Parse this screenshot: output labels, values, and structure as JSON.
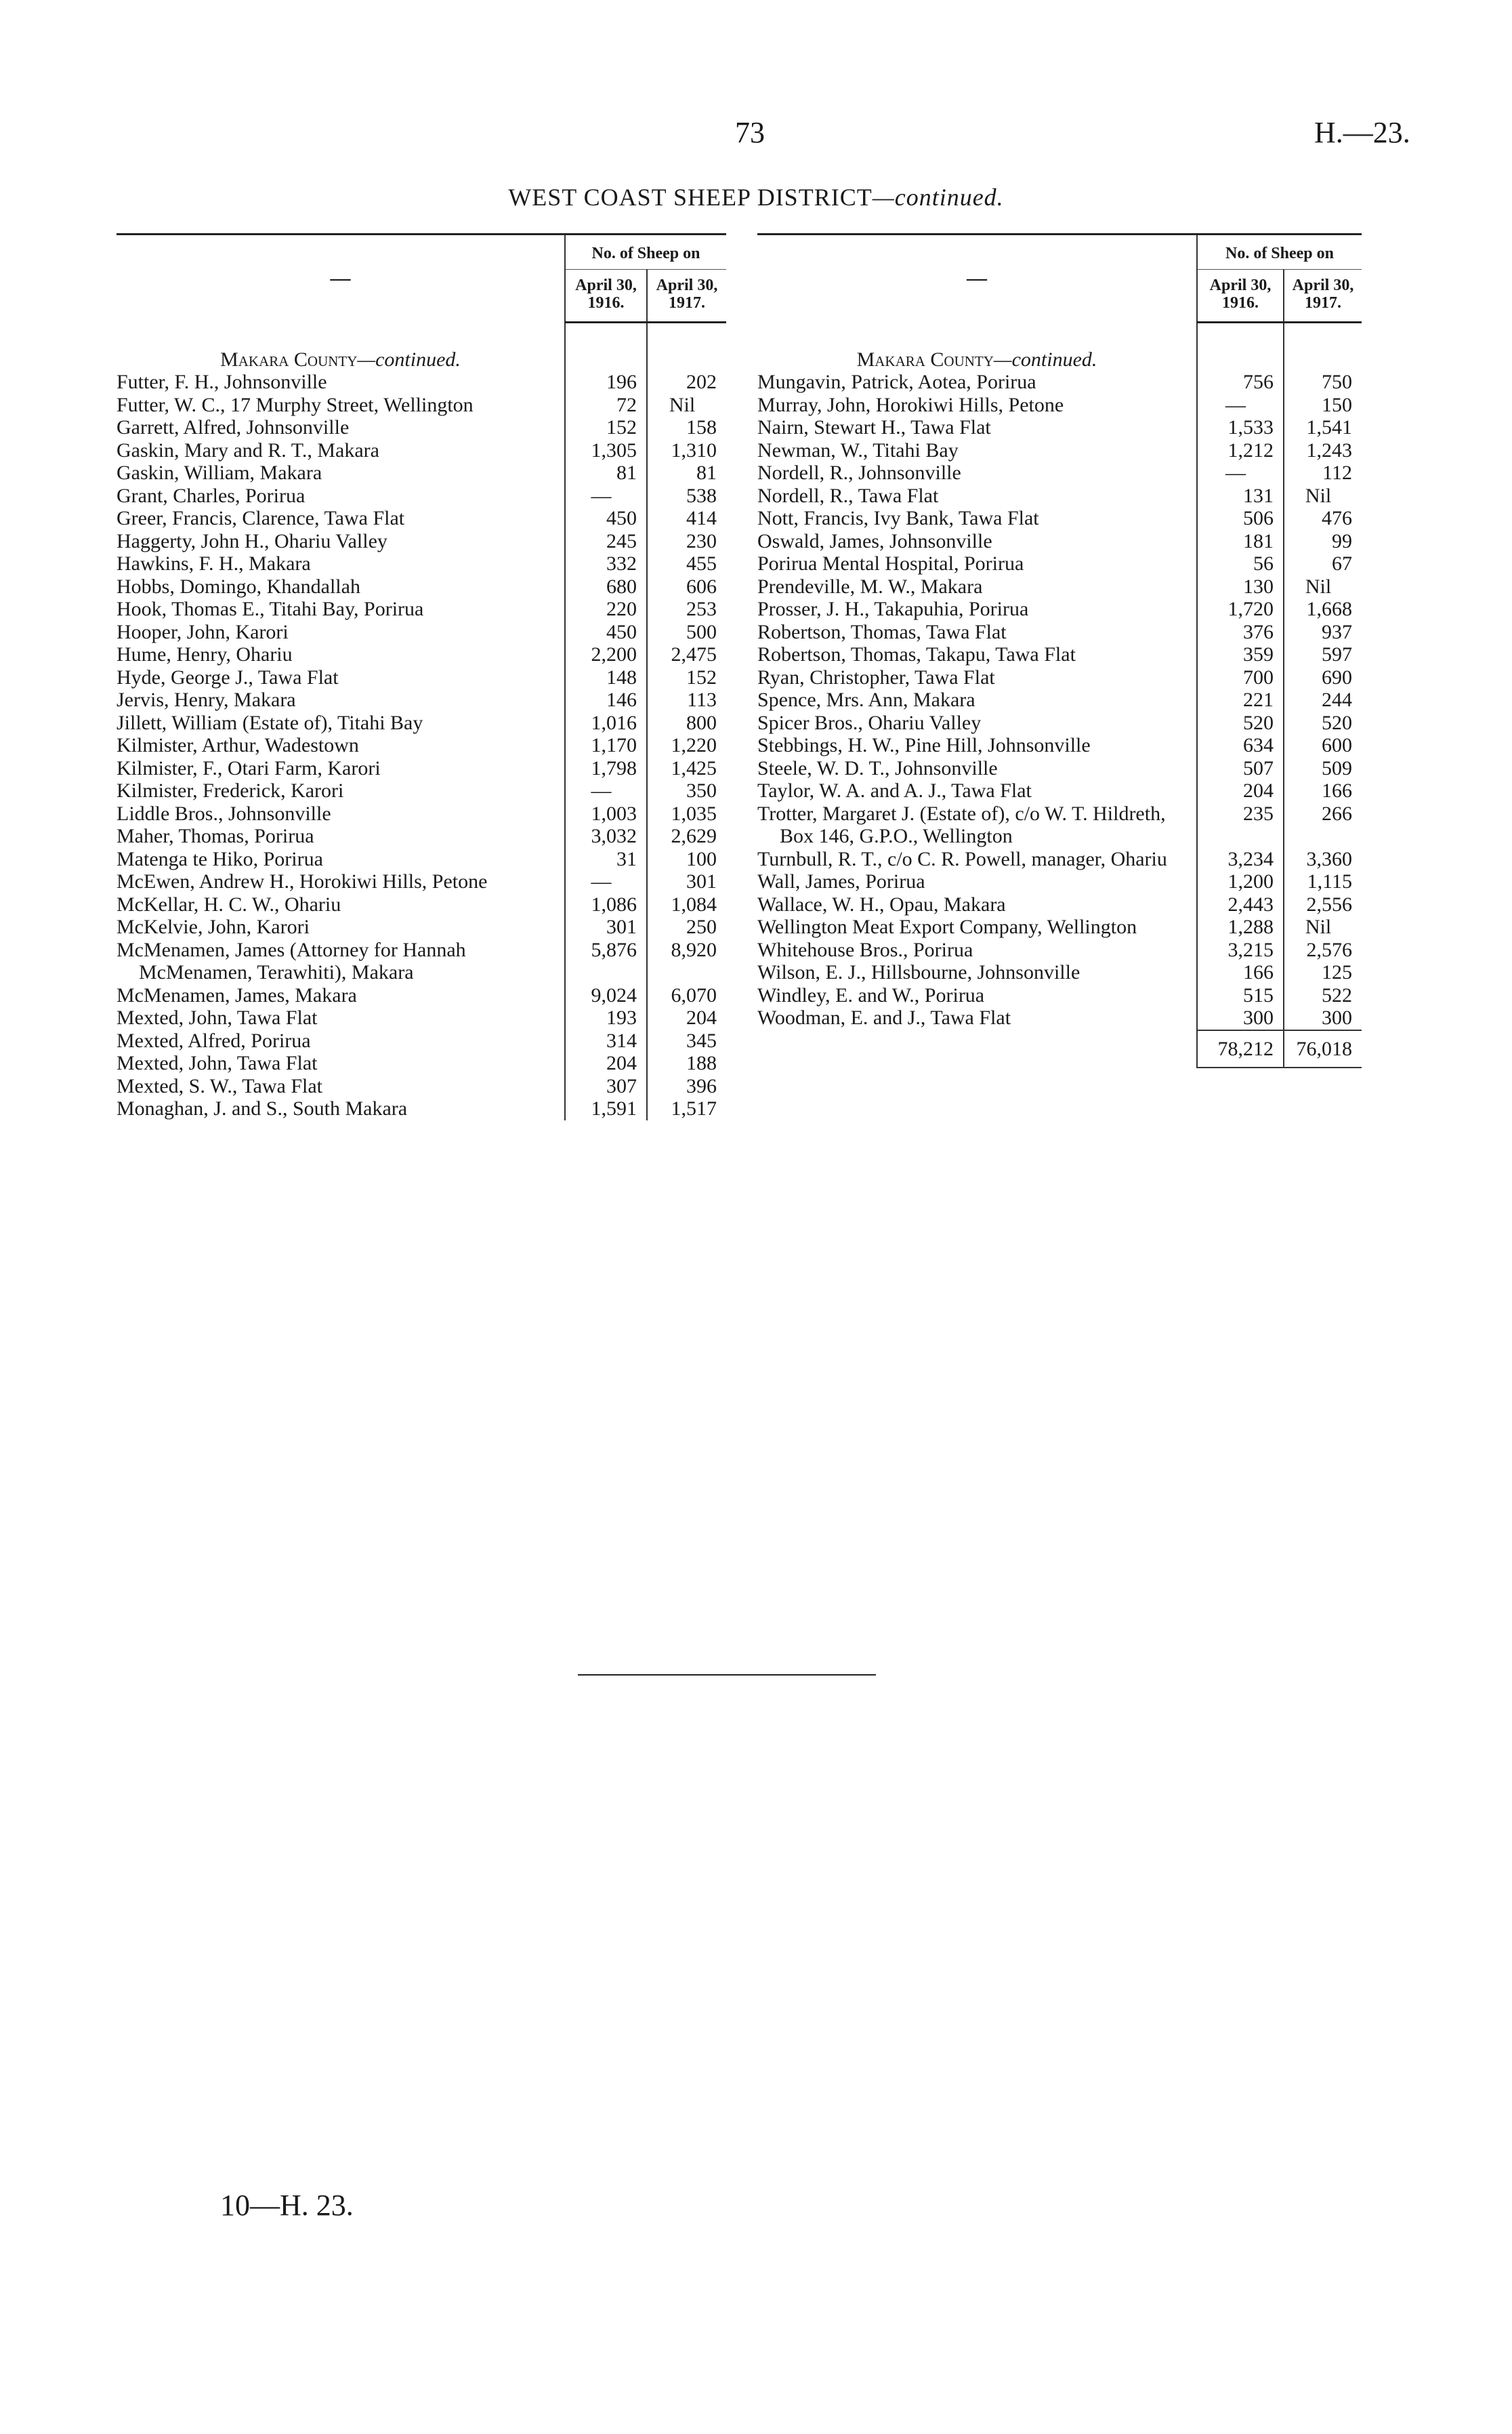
{
  "header": {
    "page_number": "73",
    "doc_ref": "H.—23.",
    "title": "WEST COAST SHEEP DISTRICT",
    "title_suffix": "—continued."
  },
  "columns": {
    "name": "—",
    "group": "No. of Sheep on",
    "col1": "April 30, 1916.",
    "col2": "April 30, 1917."
  },
  "left_table": {
    "section": {
      "name": "Makara County",
      "suffix": "—continued."
    },
    "rows": [
      {
        "name": "Futter, F. H., Johnsonville",
        "v1916": "196",
        "v1917": "202"
      },
      {
        "name": "Futter, W. C., 17 Murphy Street, Wellington",
        "v1916": "72",
        "v1917": "Nil"
      },
      {
        "name": "Garrett, Alfred, Johnsonville",
        "v1916": "152",
        "v1917": "158"
      },
      {
        "name": "Gaskin, Mary and R. T., Makara",
        "v1916": "1,305",
        "v1917": "1,310"
      },
      {
        "name": "Gaskin, William, Makara",
        "v1916": "81",
        "v1917": "81"
      },
      {
        "name": "Grant, Charles, Porirua",
        "v1916": "—",
        "v1917": "538"
      },
      {
        "name": "Greer, Francis, Clarence, Tawa Flat",
        "v1916": "450",
        "v1917": "414"
      },
      {
        "name": "Haggerty, John H., Ohariu Valley",
        "v1916": "245",
        "v1917": "230"
      },
      {
        "name": "Hawkins, F. H., Makara",
        "v1916": "332",
        "v1917": "455"
      },
      {
        "name": "Hobbs, Domingo, Khandallah",
        "v1916": "680",
        "v1917": "606"
      },
      {
        "name": "Hook, Thomas E., Titahi Bay, Porirua",
        "v1916": "220",
        "v1917": "253"
      },
      {
        "name": "Hooper, John, Karori",
        "v1916": "450",
        "v1917": "500"
      },
      {
        "name": "Hume, Henry, Ohariu",
        "v1916": "2,200",
        "v1917": "2,475"
      },
      {
        "name": "Hyde, George J., Tawa Flat",
        "v1916": "148",
        "v1917": "152"
      },
      {
        "name": "Jervis, Henry, Makara",
        "v1916": "146",
        "v1917": "113"
      },
      {
        "name": "Jillett, William (Estate of), Titahi Bay",
        "v1916": "1,016",
        "v1917": "800"
      },
      {
        "name": "Kilmister, Arthur, Wadestown",
        "v1916": "1,170",
        "v1917": "1,220"
      },
      {
        "name": "Kilmister, F., Otari Farm, Karori",
        "v1916": "1,798",
        "v1917": "1,425"
      },
      {
        "name": "Kilmister, Frederick, Karori",
        "v1916": "—",
        "v1917": "350"
      },
      {
        "name": "Liddle Bros., Johnsonville",
        "v1916": "1,003",
        "v1917": "1,035"
      },
      {
        "name": "Maher, Thomas, Porirua",
        "v1916": "3,032",
        "v1917": "2,629"
      },
      {
        "name": "Matenga te Hiko, Porirua",
        "v1916": "31",
        "v1917": "100"
      },
      {
        "name": "McEwen, Andrew H., Horokiwi Hills, Petone",
        "v1916": "—",
        "v1917": "301"
      },
      {
        "name": "McKellar, H. C. W., Ohariu",
        "v1916": "1,086",
        "v1917": "1,084"
      },
      {
        "name": "McKelvie, John, Karori",
        "v1916": "301",
        "v1917": "250"
      },
      {
        "name": "McMenamen, James (Attorney for Hannah McMenamen, Terawhiti), Makara",
        "v1916": "5,876",
        "v1917": "8,920"
      },
      {
        "name": "McMenamen, James, Makara",
        "v1916": "9,024",
        "v1917": "6,070"
      },
      {
        "name": "Mexted, John, Tawa Flat",
        "v1916": "193",
        "v1917": "204"
      },
      {
        "name": "Mexted, Alfred, Porirua",
        "v1916": "314",
        "v1917": "345"
      },
      {
        "name": "Mexted, John, Tawa Flat",
        "v1916": "204",
        "v1917": "188"
      },
      {
        "name": "Mexted, S. W., Tawa Flat",
        "v1916": "307",
        "v1917": "396"
      },
      {
        "name": "Monaghan, J. and S., South Makara",
        "v1916": "1,591",
        "v1917": "1,517"
      }
    ]
  },
  "right_table": {
    "section": {
      "name": "Makara County",
      "suffix": "—continued."
    },
    "rows": [
      {
        "name": "Mungavin, Patrick, Aotea, Porirua",
        "v1916": "756",
        "v1917": "750"
      },
      {
        "name": "Murray, John, Horokiwi Hills, Petone",
        "v1916": "—",
        "v1917": "150"
      },
      {
        "name": "Nairn, Stewart H., Tawa Flat",
        "v1916": "1,533",
        "v1917": "1,541"
      },
      {
        "name": "Newman, W., Titahi Bay",
        "v1916": "1,212",
        "v1917": "1,243"
      },
      {
        "name": "Nordell, R., Johnsonville",
        "v1916": "—",
        "v1917": "112"
      },
      {
        "name": "Nordell, R., Tawa Flat",
        "v1916": "131",
        "v1917": "Nil"
      },
      {
        "name": "Nott, Francis, Ivy Bank, Tawa Flat",
        "v1916": "506",
        "v1917": "476"
      },
      {
        "name": "Oswald, James, Johnsonville",
        "v1916": "181",
        "v1917": "99"
      },
      {
        "name": "Porirua Mental Hospital, Porirua",
        "v1916": "56",
        "v1917": "67"
      },
      {
        "name": "Prendeville, M. W., Makara",
        "v1916": "130",
        "v1917": "Nil"
      },
      {
        "name": "Prosser, J. H., Takapuhia, Porirua",
        "v1916": "1,720",
        "v1917": "1,668"
      },
      {
        "name": "Robertson, Thomas, Tawa Flat",
        "v1916": "376",
        "v1917": "937"
      },
      {
        "name": "Robertson, Thomas, Takapu, Tawa Flat",
        "v1916": "359",
        "v1917": "597"
      },
      {
        "name": "Ryan, Christopher, Tawa Flat",
        "v1916": "700",
        "v1917": "690"
      },
      {
        "name": "Spence, Mrs. Ann, Makara",
        "v1916": "221",
        "v1917": "244"
      },
      {
        "name": "Spicer Bros., Ohariu Valley",
        "v1916": "520",
        "v1917": "520"
      },
      {
        "name": "Stebbings, H. W., Pine Hill, Johnsonville",
        "v1916": "634",
        "v1917": "600"
      },
      {
        "name": "Steele, W. D. T., Johnsonville",
        "v1916": "507",
        "v1917": "509"
      },
      {
        "name": "Taylor, W. A. and A. J., Tawa Flat",
        "v1916": "204",
        "v1917": "166"
      },
      {
        "name": "Trotter, Margaret J. (Estate of), c/o W. T. Hildreth, Box 146, G.P.O., Wellington",
        "v1916": "235",
        "v1917": "266"
      },
      {
        "name": "Turnbull, R. T., c/o C. R. Powell, manager, Ohariu",
        "v1916": "3,234",
        "v1917": "3,360"
      },
      {
        "name": "Wall, James, Porirua",
        "v1916": "1,200",
        "v1917": "1,115"
      },
      {
        "name": "Wallace, W. H., Opau, Makara",
        "v1916": "2,443",
        "v1917": "2,556"
      },
      {
        "name": "Wellington Meat Export Company, Wellington",
        "v1916": "1,288",
        "v1917": "Nil"
      },
      {
        "name": "Whitehouse Bros., Porirua",
        "v1916": "3,215",
        "v1917": "2,576"
      },
      {
        "name": "Wilson, E. J., Hillsbourne, Johnsonville",
        "v1916": "166",
        "v1917": "125"
      },
      {
        "name": "Windley, E. and W., Porirua",
        "v1916": "515",
        "v1917": "522"
      },
      {
        "name": "Woodman, E. and J., Tawa Flat",
        "v1916": "300",
        "v1917": "300"
      }
    ],
    "totals": {
      "v1916": "78,212",
      "v1917": "76,018"
    }
  },
  "footer": {
    "signature": "10—H. 23."
  }
}
